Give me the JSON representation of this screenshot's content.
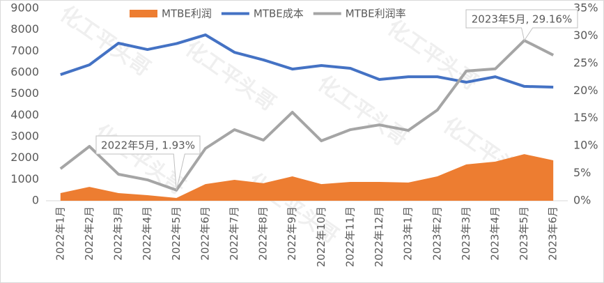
{
  "chart_data": {
    "type": "line",
    "categories": [
      "2022年1月",
      "2022年2月",
      "2022年3月",
      "2022年4月",
      "2022年5月",
      "2022年6月",
      "2022年7月",
      "2022年8月",
      "2022年9月",
      "2022年10月",
      "2022年11月",
      "2022年12月",
      "2023年1月",
      "2023年2月",
      "2023年3月",
      "2023年4月",
      "2023年5月",
      "2023年6月"
    ],
    "series": [
      {
        "name": "MTBE利润",
        "type": "area",
        "color": "#ed7d31",
        "values": [
          360,
          650,
          360,
          260,
          130,
          780,
          980,
          820,
          1140,
          780,
          880,
          880,
          850,
          1140,
          1700,
          1830,
          2180,
          1890
        ]
      },
      {
        "name": "MTBE成本",
        "type": "line",
        "color": "#4472c4",
        "values": [
          5900,
          6360,
          7370,
          7075,
          7350,
          7760,
          6945,
          6590,
          6160,
          6325,
          6195,
          5675,
          5800,
          5800,
          5545,
          5800,
          5350,
          5315
        ]
      },
      {
        "name": "MTBE利润率",
        "type": "line",
        "color": "#a5a5a5",
        "axis": "y2",
        "values": [
          5.83,
          9.89,
          4.82,
          3.8,
          1.93,
          9.51,
          12.93,
          11.03,
          16.1,
          10.9,
          12.93,
          13.8,
          12.8,
          16.5,
          23.6,
          24.0,
          29.16,
          26.5
        ]
      }
    ],
    "ylim": [
      0,
      9000
    ],
    "yticks": [
      0,
      1000,
      2000,
      3000,
      4000,
      5000,
      6000,
      7000,
      8000,
      9000
    ],
    "y2lim": [
      0,
      35
    ],
    "y2ticks": [
      {
        "value": 0,
        "label": "0%"
      },
      {
        "value": 5,
        "label": "5%"
      },
      {
        "value": 10,
        "label": "10%"
      },
      {
        "value": 15,
        "label": "15%"
      },
      {
        "value": 20,
        "label": "20%"
      },
      {
        "value": 25,
        "label": "25%"
      },
      {
        "value": 30,
        "label": "30%"
      },
      {
        "value": 35,
        "label": "35%"
      }
    ],
    "annotations": [
      "2022年5月, 1.93%",
      "2023年5月, 29.16%"
    ],
    "watermark": "化工平头哥",
    "legend": "top",
    "grid": false
  }
}
